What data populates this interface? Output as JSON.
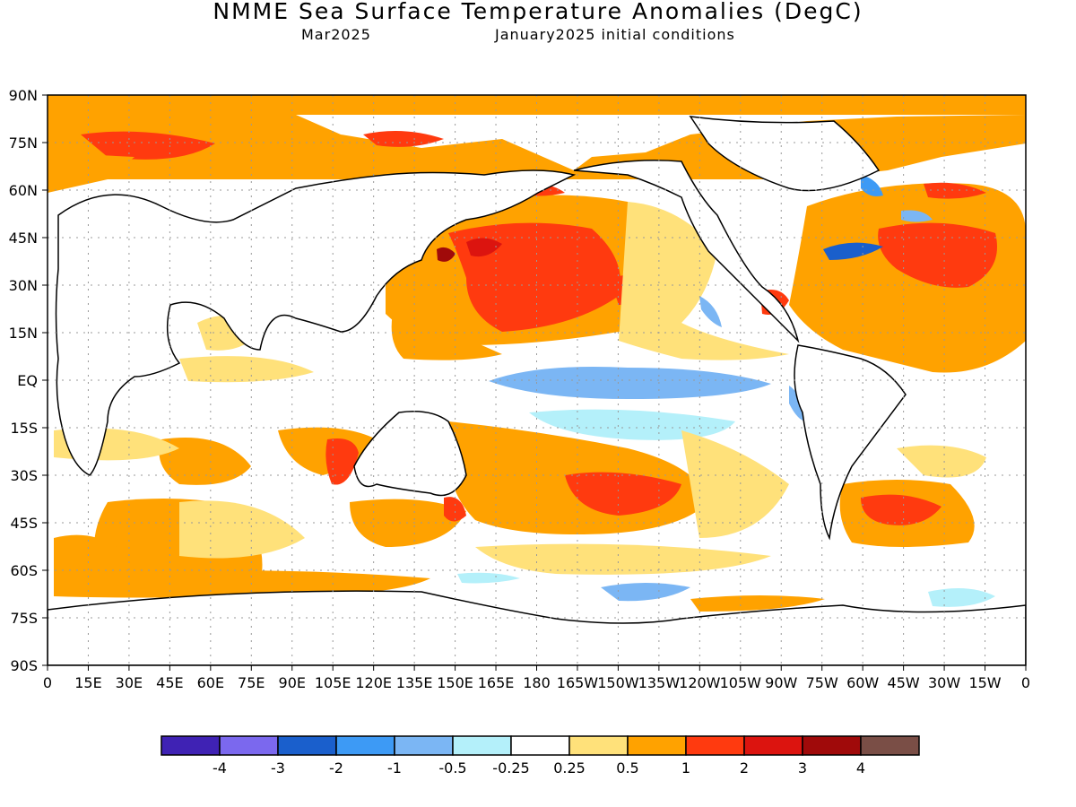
{
  "title": "NMME Sea Surface Temperature Anomalies (DegC)",
  "subtitle_left": "Mar2025",
  "subtitle_right": "January2025 initial conditions",
  "map": {
    "projection": "equirectangular",
    "lon_range": [
      0,
      360
    ],
    "lat_range": [
      -90,
      90
    ],
    "grid": true,
    "lat_labels": [
      "90N",
      "75N",
      "60N",
      "45N",
      "30N",
      "15N",
      "EQ",
      "15S",
      "30S",
      "45S",
      "60S",
      "75S",
      "90S"
    ],
    "lon_labels": [
      "0",
      "15E",
      "30E",
      "45E",
      "60E",
      "75E",
      "90E",
      "105E",
      "120E",
      "135E",
      "150E",
      "165E",
      "180",
      "165W",
      "150W",
      "135W",
      "120W",
      "105W",
      "90W",
      "75W",
      "60W",
      "45W",
      "30W",
      "15W",
      "0"
    ]
  },
  "colorbar": {
    "colors": [
      "#3f22b4",
      "#7b68ee",
      "#1a5fcc",
      "#3d9af5",
      "#7bb6f4",
      "#b4f0fa",
      "#ffffff",
      "#ffe17a",
      "#ffa200",
      "#ff3a0f",
      "#dc140f",
      "#a00a0a",
      "#7a4e46"
    ],
    "labels": [
      "-4",
      "-3",
      "-2",
      "-1",
      "-0.5",
      "-0.25",
      "0.25",
      "0.5",
      "1",
      "2",
      "3",
      "4"
    ]
  }
}
